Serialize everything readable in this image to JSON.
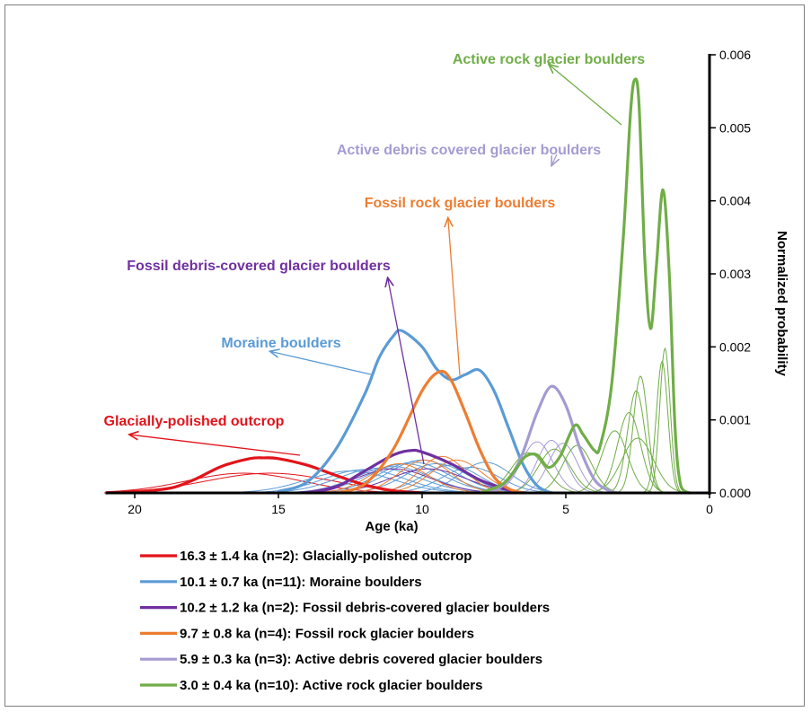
{
  "chart_data": {
    "type": "line",
    "xlabel": "Age (ka)",
    "ylabel": "Normalized probability",
    "x_ticks": [
      "20",
      "15",
      "10",
      "5",
      "0"
    ],
    "y_ticks": [
      "0.000",
      "0.001",
      "0.002",
      "0.003",
      "0.004",
      "0.005",
      "0.006"
    ],
    "xlim": [
      21,
      0
    ],
    "ylim": [
      0,
      0.006
    ],
    "x_reversed": true,
    "y_axis_position": "right",
    "grid": false,
    "series": [
      {
        "name": "Glacially-polished outcrop",
        "legend": "16.3 ± 1.4 ka (n=2): Glacially-polished outcrop",
        "color": "#e2141b",
        "individual": [
          {
            "mean": 16.2,
            "sd": 2.0,
            "peak": 0.00027
          },
          {
            "mean": 15.3,
            "sd": 2.2,
            "peak": 0.00027
          }
        ],
        "summary": {
          "peak_age": 15.5,
          "peak": 0.00048
        },
        "summary_curve": [
          [
            21,
            0.0
          ],
          [
            19,
            5e-05
          ],
          [
            18,
            0.00017
          ],
          [
            17,
            0.00036
          ],
          [
            16,
            0.00047
          ],
          [
            15.5,
            0.00048
          ],
          [
            15,
            0.00047
          ],
          [
            14,
            0.00038
          ],
          [
            13,
            0.00024
          ],
          [
            12,
            0.00011
          ],
          [
            11,
            3e-05
          ],
          [
            10,
            0.0
          ]
        ]
      },
      {
        "name": "Moraine boulders",
        "legend": "10.1 ± 0.7 ka (n=11): Moraine boulders",
        "color": "#5b9bd5",
        "individual": [
          {
            "mean": 12.5,
            "sd": 1.5,
            "peak": 0.0003
          },
          {
            "mean": 12.0,
            "sd": 1.4,
            "peak": 0.00032
          },
          {
            "mean": 11.5,
            "sd": 1.4,
            "peak": 0.00034
          },
          {
            "mean": 11.0,
            "sd": 1.3,
            "peak": 0.00036
          },
          {
            "mean": 10.6,
            "sd": 1.3,
            "peak": 0.0004
          },
          {
            "mean": 10.3,
            "sd": 1.2,
            "peak": 0.00042
          },
          {
            "mean": 10.0,
            "sd": 1.2,
            "peak": 0.00045
          },
          {
            "mean": 9.5,
            "sd": 1.1,
            "peak": 0.0004
          },
          {
            "mean": 9.0,
            "sd": 1.0,
            "peak": 0.00038
          },
          {
            "mean": 8.3,
            "sd": 1.0,
            "peak": 0.00035
          },
          {
            "mean": 7.8,
            "sd": 0.9,
            "peak": 0.00042
          }
        ],
        "summary": {
          "peak_age": 10.7,
          "peak": 0.00222
        },
        "summary_curve": [
          [
            15,
            2e-05
          ],
          [
            14,
            0.00015
          ],
          [
            13,
            0.0006
          ],
          [
            12,
            0.00135
          ],
          [
            11.5,
            0.00185
          ],
          [
            11,
            0.00215
          ],
          [
            10.7,
            0.00222
          ],
          [
            10,
            0.002
          ],
          [
            9.5,
            0.0017
          ],
          [
            9.0,
            0.00155
          ],
          [
            8.5,
            0.00162
          ],
          [
            8.0,
            0.00168
          ],
          [
            7.5,
            0.0014
          ],
          [
            7.0,
            0.0009
          ],
          [
            6.5,
            0.0004
          ],
          [
            6,
            0.0001
          ],
          [
            5.5,
            0.0
          ]
        ]
      },
      {
        "name": "Fossil debris-covered glacier boulders",
        "legend": "10.2 ± 1.2 ka (n=2): Fossil debris-covered glacier boulders",
        "color": "#7030a0",
        "individual": [
          {
            "mean": 11.0,
            "sd": 1.3,
            "peak": 0.00033
          },
          {
            "mean": 9.8,
            "sd": 1.3,
            "peak": 0.00033
          }
        ],
        "summary": {
          "peak_age": 10.4,
          "peak": 0.00058
        },
        "summary_curve": [
          [
            14,
            0.0
          ],
          [
            13,
            8e-05
          ],
          [
            12,
            0.0003
          ],
          [
            11,
            0.00052
          ],
          [
            10.4,
            0.00058
          ],
          [
            10,
            0.00056
          ],
          [
            9,
            0.0004
          ],
          [
            8,
            0.00018
          ],
          [
            7,
            4e-05
          ],
          [
            6.5,
            0.0
          ]
        ]
      },
      {
        "name": "Fossil rock glacier boulders",
        "legend": "9.7 ± 0.8 ka (n=4): Fossil rock glacier boulders",
        "color": "#ed7d31",
        "individual": [
          {
            "mean": 10.8,
            "sd": 1.0,
            "peak": 0.0004
          },
          {
            "mean": 9.9,
            "sd": 0.9,
            "peak": 0.00045
          },
          {
            "mean": 9.3,
            "sd": 0.8,
            "peak": 0.0005
          },
          {
            "mean": 8.8,
            "sd": 0.9,
            "peak": 0.00045
          }
        ],
        "summary": {
          "peak_age": 9.4,
          "peak": 0.00166
        },
        "summary_curve": [
          [
            13,
            0.0
          ],
          [
            12,
            0.00012
          ],
          [
            11,
            0.0006
          ],
          [
            10,
            0.0014
          ],
          [
            9.4,
            0.00166
          ],
          [
            9,
            0.00155
          ],
          [
            8.5,
            0.0011
          ],
          [
            8,
            0.0006
          ],
          [
            7.5,
            0.00022
          ],
          [
            7,
            6e-05
          ],
          [
            6.5,
            0.0
          ]
        ]
      },
      {
        "name": "Active debris covered glacier boulders",
        "legend": "5.9 ± 0.3 ka (n=3): Active debris covered glacier boulders",
        "color": "#a59bd2",
        "individual": [
          {
            "mean": 6.0,
            "sd": 0.55,
            "peak": 0.0007
          },
          {
            "mean": 5.5,
            "sd": 0.5,
            "peak": 0.00072
          },
          {
            "mean": 5.1,
            "sd": 0.5,
            "peak": 0.00068
          }
        ],
        "summary": {
          "peak_age": 5.5,
          "peak": 0.00146
        },
        "summary_curve": [
          [
            8,
            0.0
          ],
          [
            7.2,
            0.0001
          ],
          [
            6.6,
            0.00045
          ],
          [
            6,
            0.0011
          ],
          [
            5.5,
            0.00146
          ],
          [
            5,
            0.0012
          ],
          [
            4.5,
            0.0006
          ],
          [
            4,
            0.00018
          ],
          [
            3.5,
            3e-05
          ],
          [
            3.2,
            0.0
          ]
        ]
      },
      {
        "name": "Active rock glacier boulders",
        "legend": "3.0 ± 0.4 ka (n=10): Active rock glacier boulders",
        "color": "#70ad47",
        "individual": [
          {
            "mean": 6.3,
            "sd": 0.6,
            "peak": 0.00055
          },
          {
            "mean": 5.4,
            "sd": 0.55,
            "peak": 0.0006
          },
          {
            "mean": 4.6,
            "sd": 0.5,
            "peak": 0.00065
          },
          {
            "mean": 3.3,
            "sd": 0.45,
            "peak": 0.00085
          },
          {
            "mean": 2.8,
            "sd": 0.4,
            "peak": 0.0011
          },
          {
            "mean": 2.55,
            "sd": 0.3,
            "peak": 0.0014
          },
          {
            "mean": 2.4,
            "sd": 0.25,
            "peak": 0.0016
          },
          {
            "mean": 1.65,
            "sd": 0.2,
            "peak": 0.0018
          },
          {
            "mean": 1.55,
            "sd": 0.18,
            "peak": 0.00198
          },
          {
            "mean": 2.5,
            "sd": 0.55,
            "peak": 0.00075
          }
        ],
        "summary": {
          "peak_age": 2.6,
          "peak": 0.00566
        },
        "summary_curve": [
          [
            8,
            0.0
          ],
          [
            7.2,
            0.00012
          ],
          [
            6.7,
            0.00035
          ],
          [
            6.4,
            0.0005
          ],
          [
            6,
            0.00052
          ],
          [
            5.6,
            0.00035
          ],
          [
            5.2,
            0.0005
          ],
          [
            4.7,
            0.00092
          ],
          [
            4.4,
            0.0008
          ],
          [
            4.0,
            0.00058
          ],
          [
            3.8,
            0.00065
          ],
          [
            3.4,
            0.0015
          ],
          [
            3.0,
            0.0035
          ],
          [
            2.75,
            0.0052
          ],
          [
            2.6,
            0.00566
          ],
          [
            2.45,
            0.0053
          ],
          [
            2.25,
            0.0032
          ],
          [
            2.05,
            0.00225
          ],
          [
            1.85,
            0.0031
          ],
          [
            1.62,
            0.00415
          ],
          [
            1.4,
            0.003
          ],
          [
            1.2,
            0.0009
          ],
          [
            1.0,
            0.0001
          ],
          [
            0.7,
            0.0
          ]
        ]
      }
    ],
    "annotations": [
      {
        "text": "Active rock glacier boulders",
        "color": "#70ad47",
        "target_age": 5.6,
        "target_value": 0.00587
      },
      {
        "text": "Active debris covered glacier boulders",
        "color": "#a59bd2",
        "target_age": 5.5,
        "target_value": 0.00448
      },
      {
        "text": "Fossil rock glacier boulders",
        "color": "#ed7d31",
        "target_age": 9.1,
        "target_value": 0.00377
      },
      {
        "text": "Fossil debris-covered glacier boulders",
        "color": "#7030a0",
        "target_age": 11.2,
        "target_value": 0.00295
      },
      {
        "text": "Moraine boulders",
        "color": "#5b9bd5",
        "target_age": 15.3,
        "target_value": 0.00194
      },
      {
        "text": "Glacially-polished outcrop",
        "color": "#e2141b",
        "target_age": 20.2,
        "target_value": 0.0008
      }
    ]
  }
}
